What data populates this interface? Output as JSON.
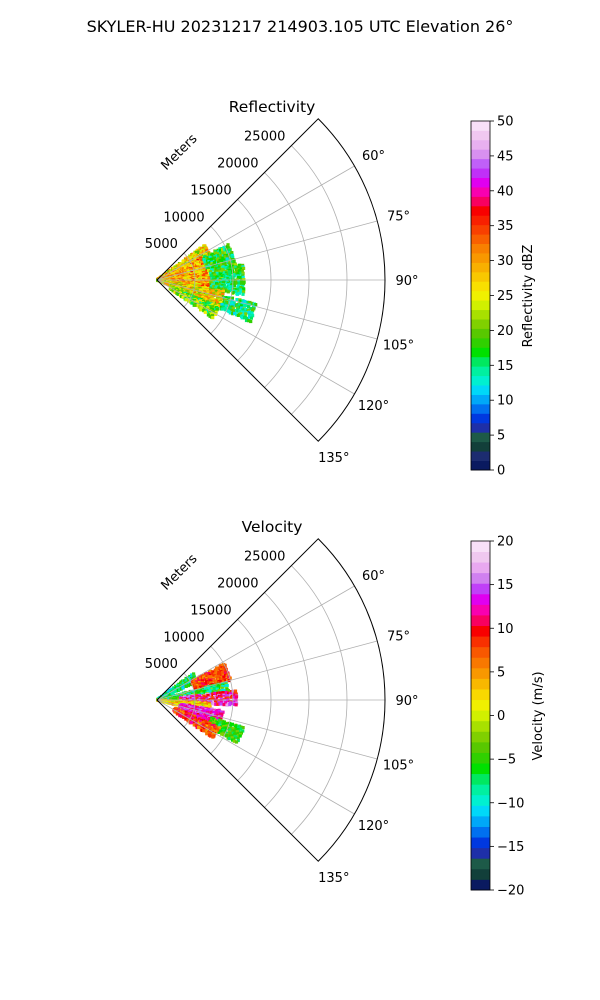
{
  "figure": {
    "title": "SKYLER-HU  20231217  214903.105 UTC Elevation 26°"
  },
  "chart_data": [
    {
      "type": "heatmap",
      "subtype": "polar-sector (PPI)",
      "title": "Reflectivity",
      "radial_axis_label": "Meters",
      "radial_ticks": [
        "5000",
        "10000",
        "15000",
        "20000",
        "25000"
      ],
      "radial_range": [
        0,
        30000
      ],
      "angle_ticks": [
        "60°",
        "75°",
        "90°",
        "105°",
        "120°",
        "135°"
      ],
      "angle_range_deg": [
        45,
        135
      ],
      "grid": true,
      "colorbar": {
        "label": "Reflectivity dBZ",
        "range": [
          0,
          50
        ],
        "ticks": [
          "0",
          "5",
          "10",
          "15",
          "20",
          "25",
          "30",
          "35",
          "40",
          "45",
          "50"
        ]
      },
      "echo_regions": [
        {
          "az_range": [
            54,
            64
          ],
          "r_range": [
            0,
            8000
          ],
          "value": 26,
          "spread": 7
        },
        {
          "az_range": [
            64,
            80
          ],
          "r_range": [
            0,
            6600
          ],
          "value": 30,
          "spread": 7
        },
        {
          "az_range": [
            64,
            80
          ],
          "r_range": [
            6600,
            10500
          ],
          "value": 17,
          "spread": 5
        },
        {
          "az_range": [
            80,
            100
          ],
          "r_range": [
            0,
            7000
          ],
          "value": 29,
          "spread": 7
        },
        {
          "az_range": [
            80,
            100
          ],
          "r_range": [
            7000,
            11500
          ],
          "value": 17,
          "spread": 5
        },
        {
          "az_range": [
            100,
            114
          ],
          "r_range": [
            0,
            9000
          ],
          "value": 26,
          "spread": 7
        },
        {
          "az_range": [
            104,
            114
          ],
          "r_range": [
            9000,
            13500
          ],
          "value": 16,
          "spread": 5
        },
        {
          "az_range": [
            114,
            124
          ],
          "r_range": [
            2000,
            9000
          ],
          "value": 20,
          "spread": 6
        }
      ]
    },
    {
      "type": "heatmap",
      "subtype": "polar-sector (PPI)",
      "title": "Velocity",
      "radial_axis_label": "Meters",
      "radial_ticks": [
        "5000",
        "10000",
        "15000",
        "20000",
        "25000"
      ],
      "radial_range": [
        0,
        30000
      ],
      "angle_ticks": [
        "60°",
        "75°",
        "90°",
        "105°",
        "120°",
        "135°"
      ],
      "angle_range_deg": [
        45,
        135
      ],
      "grid": true,
      "colorbar": {
        "label": "Velocity (m/s)",
        "range": [
          -20,
          20
        ],
        "ticks": [
          "−20",
          "−15",
          "−10",
          "−5",
          "0",
          "5",
          "10",
          "15",
          "20"
        ]
      },
      "echo_regions": [
        {
          "az_range": [
            54,
            66
          ],
          "r_range": [
            0,
            6000
          ],
          "value": -8,
          "spread": 4
        },
        {
          "az_range": [
            62,
            76
          ],
          "r_range": [
            5000,
            10000
          ],
          "value": 8,
          "spread": 3
        },
        {
          "az_range": [
            76,
            90
          ],
          "r_range": [
            0,
            9500
          ],
          "value": -6,
          "spread": 5
        },
        {
          "az_range": [
            84,
            94
          ],
          "r_range": [
            3000,
            10500
          ],
          "value": 12,
          "spread": 5
        },
        {
          "az_range": [
            94,
            104
          ],
          "r_range": [
            0,
            7000
          ],
          "value": 2,
          "spread": 4
        },
        {
          "az_range": [
            100,
            114
          ],
          "r_range": [
            3000,
            9000
          ],
          "value": 13,
          "spread": 3
        },
        {
          "az_range": [
            108,
            118
          ],
          "r_range": [
            7500,
            12000
          ],
          "value": -5,
          "spread": 3
        },
        {
          "az_range": [
            114,
            124
          ],
          "r_range": [
            2500,
            9000
          ],
          "value": 8,
          "spread": 4
        }
      ]
    }
  ]
}
